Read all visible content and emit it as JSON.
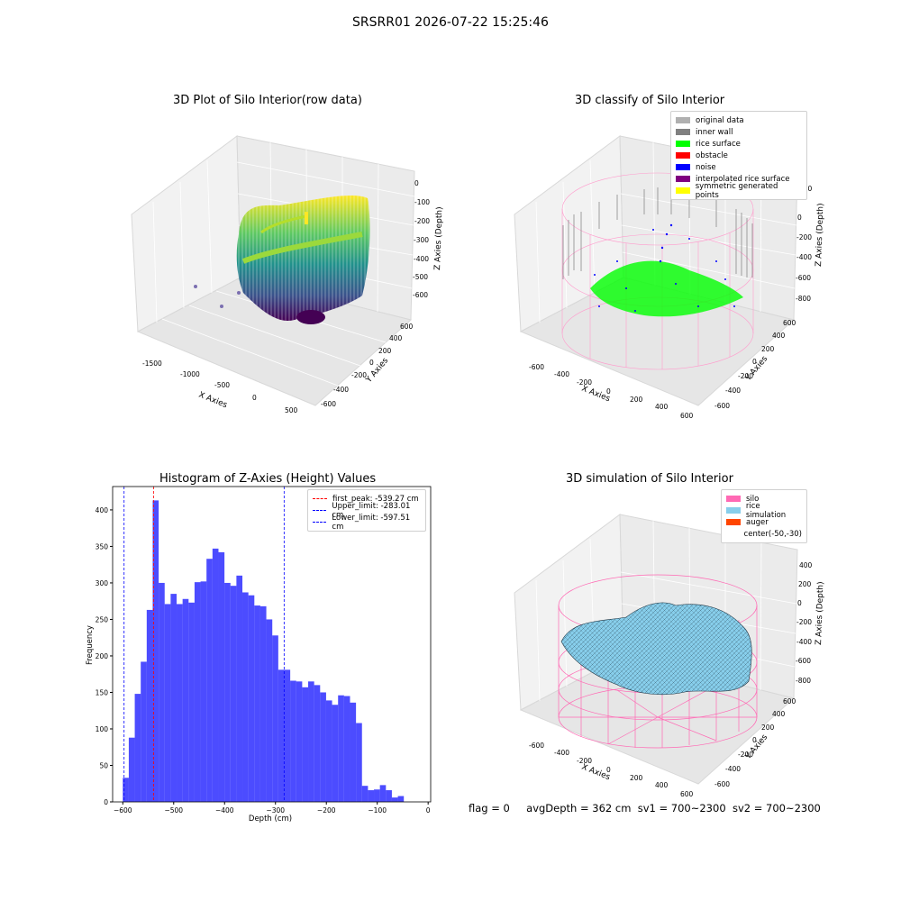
{
  "suptitle": "SRSRR01 2026-07-22 15:25:46",
  "footer": {
    "flag": "flag = 0",
    "avg_depth": "avgDepth = 362 cm",
    "sv1": "sv1 = 700~2300",
    "sv2": "sv2 = 700~2300"
  },
  "plots": {
    "raw": {
      "title": "3D Plot of Silo Interior(row data)",
      "xlabel": "X Axies",
      "ylabel": "Y Axies",
      "zlabel": "Z Axies (Depth)",
      "xticks": [
        "-1500",
        "-1000",
        "-500",
        "0",
        "500"
      ],
      "yticks": [
        "-600",
        "-400",
        "-200",
        "0",
        "200",
        "400",
        "600"
      ],
      "zticks": [
        "0",
        "-100",
        "-200",
        "-300",
        "-400",
        "-500",
        "-600"
      ]
    },
    "classify": {
      "title": "3D classify of Silo Interior",
      "xlabel": "X Axies",
      "ylabel": "Y Axies",
      "zlabel": "Z Axies (Depth)",
      "xticks": [
        "-600",
        "-400",
        "-200",
        "0",
        "200",
        "400",
        "600"
      ],
      "yticks": [
        "-600",
        "-400",
        "-200",
        "0",
        "200",
        "400",
        "600"
      ],
      "zticks": [
        "200",
        "0",
        "-200",
        "-400",
        "-600",
        "-800"
      ],
      "ztick_top": "400",
      "legend": [
        {
          "label": "original data",
          "color": "#b0b0b0"
        },
        {
          "label": "inner wall",
          "color": "#808080"
        },
        {
          "label": "rice surface",
          "color": "#00ff00"
        },
        {
          "label": "obstacle",
          "color": "#ff0000"
        },
        {
          "label": "noise",
          "color": "#0000ff"
        },
        {
          "label": "interpolated rice surface",
          "color": "#800080"
        },
        {
          "label": "symmetric generated points",
          "color": "#ffff00"
        }
      ]
    },
    "simulation": {
      "title": "3D simulation of Silo Interior",
      "xlabel": "X Axies",
      "ylabel": "Y Axies",
      "zlabel": "Z Axies (Depth)",
      "xticks": [
        "-600",
        "-400",
        "-200",
        "0",
        "200",
        "400",
        "600"
      ],
      "yticks": [
        "-600",
        "-400",
        "-200",
        "0",
        "200",
        "400",
        "600"
      ],
      "zticks": [
        "400",
        "200",
        "0",
        "-200",
        "-400",
        "-600",
        "-800"
      ],
      "legend": [
        {
          "label": "silo",
          "color": "#ff69b4"
        },
        {
          "label": "rice simulation",
          "color": "#87ceeb"
        },
        {
          "label": "auger",
          "color": "#ff4500"
        },
        {
          "label": "center(-50,-30)",
          "color": ""
        }
      ]
    }
  },
  "chart_data": {
    "type": "bar",
    "title": "Histogram of Z-Axies (Height) Values",
    "xlabel": "Depth (cm)",
    "ylabel": "Frequency",
    "xlim": [
      -620,
      5
    ],
    "ylim": [
      0,
      432
    ],
    "xticks": [
      -600,
      -500,
      -400,
      -300,
      -200,
      -100,
      0
    ],
    "yticks": [
      0,
      50,
      100,
      150,
      200,
      250,
      300,
      350,
      400
    ],
    "bar_color": "#0000ff",
    "bin_start": -600,
    "bin_width": 11.75,
    "values": [
      33,
      88,
      148,
      192,
      263,
      413,
      300,
      271,
      285,
      271,
      278,
      273,
      301,
      302,
      333,
      347,
      342,
      300,
      296,
      310,
      287,
      283,
      269,
      268,
      250,
      228,
      181,
      181,
      166,
      165,
      157,
      165,
      160,
      150,
      139,
      133,
      146,
      145,
      136,
      108,
      22,
      16,
      17,
      23,
      16,
      6,
      8
    ],
    "lines": [
      {
        "label": "first_peak: -539.27 cm",
        "value": -539.27,
        "color": "#ff0000"
      },
      {
        "label": "Upper_limit: -283.01 cm",
        "value": -283.01,
        "color": "#0000ff"
      },
      {
        "label": "Lower_limit: -597.51 cm",
        "value": -597.51,
        "color": "#0000ff"
      }
    ]
  }
}
